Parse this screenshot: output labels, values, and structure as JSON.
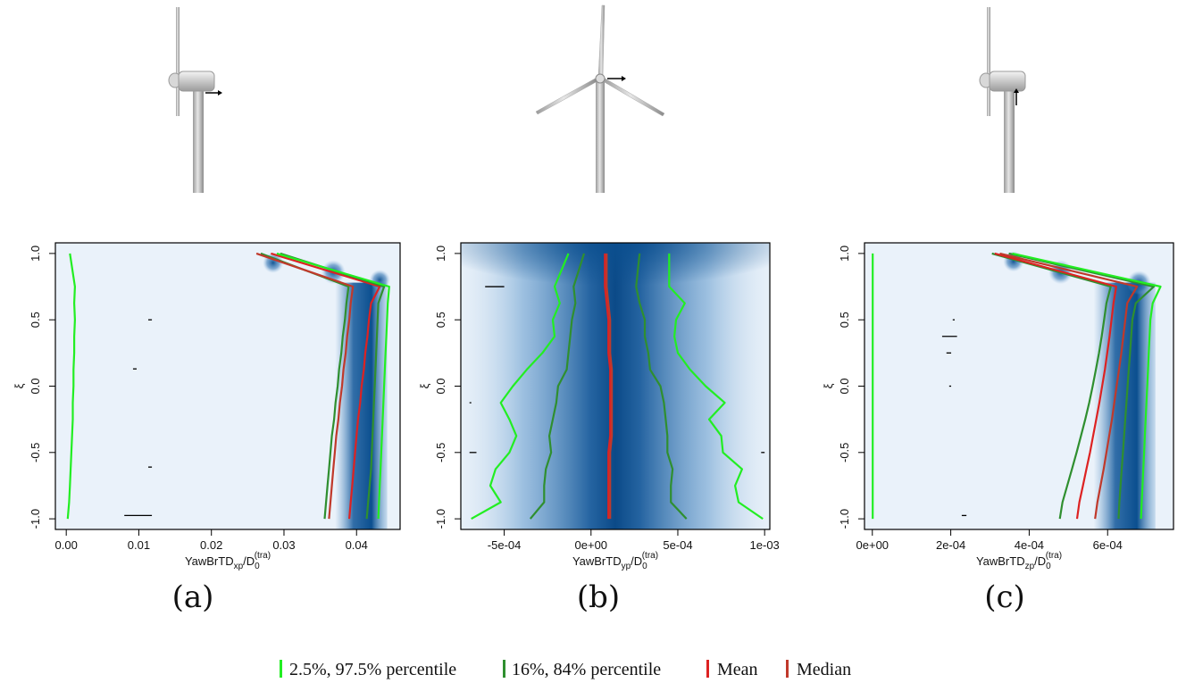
{
  "colors": {
    "p2_5_97_5": "#22ee22",
    "p16_84": "#2f8f2f",
    "mean": "#dd2222",
    "median": "#c0392b",
    "density_low": "#eaf2fa",
    "density_high": "#0b4f8f"
  },
  "icons": [
    "turbine-side-view-x-icon",
    "turbine-front-view-y-icon",
    "turbine-side-view-z-icon"
  ],
  "legend": {
    "items": [
      {
        "label": "2.5%, 97.5% percentile",
        "color_key": "p2_5_97_5"
      },
      {
        "label": "16%, 84% percentile",
        "color_key": "p16_84"
      },
      {
        "label": "Mean",
        "color_key": "mean"
      },
      {
        "label": "Median",
        "color_key": "median"
      }
    ]
  },
  "chart_data": [
    {
      "type": "line",
      "panel_label": "(a)",
      "ylabel": "ξ",
      "xlabel_main": "YawBrTD",
      "xlabel_sub": "xp",
      "xlabel_denominator": "/D",
      "xlabel_den_sub": "0",
      "xlabel_den_sup": "(tra)",
      "xlim": [
        -0.0015,
        0.046
      ],
      "ylim": [
        -1.08,
        1.08
      ],
      "xticks": [
        0,
        0.01,
        0.02,
        0.03,
        0.04
      ],
      "xtick_labels": [
        "0.00",
        "0.01",
        "0.02",
        "0.03",
        "0.04"
      ],
      "yticks": [
        -1,
        -0.5,
        0,
        0.5,
        1
      ],
      "ytick_labels": [
        "-1.0",
        "-0.5",
        "0.0",
        "0.5",
        "1.0"
      ],
      "y": [
        -1.0,
        -0.875,
        -0.75,
        -0.625,
        -0.5,
        -0.375,
        -0.25,
        -0.125,
        0.0,
        0.125,
        0.25,
        0.375,
        0.5,
        0.625,
        0.75,
        1.0
      ],
      "series": [
        {
          "role": "p2_5",
          "values": [
            0.0002,
            0.0004,
            0.0005,
            0.0006,
            0.0007,
            0.0008,
            0.0009,
            0.0009,
            0.001,
            0.001,
            0.0011,
            0.0011,
            0.0012,
            0.0011,
            0.0012,
            0.0005
          ]
        },
        {
          "role": "p16",
          "values": [
            0.0356,
            0.0358,
            0.036,
            0.0362,
            0.0364,
            0.0366,
            0.0369,
            0.0371,
            0.0374,
            0.0376,
            0.0379,
            0.0381,
            0.0384,
            0.0386,
            0.0389,
            0.0268
          ]
        },
        {
          "role": "median",
          "values": [
            0.0362,
            0.0364,
            0.0366,
            0.0368,
            0.037,
            0.0372,
            0.0375,
            0.0377,
            0.038,
            0.0382,
            0.0385,
            0.0387,
            0.039,
            0.0392,
            0.0395,
            0.0262
          ]
        },
        {
          "role": "mean",
          "values": [
            0.039,
            0.0392,
            0.0394,
            0.0396,
            0.0398,
            0.04,
            0.0402,
            0.0405,
            0.0407,
            0.041,
            0.0412,
            0.0415,
            0.0417,
            0.042,
            0.0432,
            0.0282
          ]
        },
        {
          "role": "p84",
          "values": [
            0.0414,
            0.0416,
            0.0418,
            0.042,
            0.0421,
            0.0422,
            0.0423,
            0.0424,
            0.0425,
            0.0426,
            0.0427,
            0.0428,
            0.0429,
            0.043,
            0.0438,
            0.0295
          ]
        },
        {
          "role": "p97_5",
          "values": [
            0.043,
            0.0431,
            0.0432,
            0.0433,
            0.0434,
            0.0435,
            0.0436,
            0.0437,
            0.0438,
            0.0439,
            0.044,
            0.0441,
            0.0442,
            0.0443,
            0.0445,
            0.029
          ]
        }
      ],
      "outliers": [
        {
          "x0": 0.008,
          "x1": 0.0118,
          "y": -0.975
        },
        {
          "x0": 0.0113,
          "x1": 0.0118,
          "y": -0.61
        },
        {
          "x0": 0.0092,
          "x1": 0.0097,
          "y": 0.13
        },
        {
          "x0": 0.0113,
          "x1": 0.0118,
          "y": 0.5
        }
      ],
      "density_core": [
        0.0395,
        0.0425
      ],
      "density_blobs": [
        {
          "x": 0.0285,
          "y": 0.93,
          "r": 0.06
        },
        {
          "x": 0.0368,
          "y": 0.86,
          "r": 0.07
        },
        {
          "x": 0.0432,
          "y": 0.8,
          "r": 0.06
        }
      ]
    },
    {
      "type": "line",
      "panel_label": "(b)",
      "ylabel": "ξ",
      "xlabel_main": "YawBrTD",
      "xlabel_sub": "yp",
      "xlabel_denominator": "/D",
      "xlabel_den_sub": "0",
      "xlabel_den_sup": "(tra)",
      "xlim": [
        -0.00075,
        0.00103
      ],
      "ylim": [
        -1.08,
        1.08
      ],
      "xticks": [
        -0.0005,
        0,
        0.0005,
        0.001
      ],
      "xtick_labels": [
        "-5e-04",
        "0e+00",
        "5e-04",
        "1e-03"
      ],
      "yticks": [
        -1,
        -0.5,
        0,
        0.5,
        1
      ],
      "ytick_labels": [
        "-1.0",
        "-0.5",
        "0.0",
        "0.5",
        "1.0"
      ],
      "y": [
        -1.0,
        -0.875,
        -0.75,
        -0.625,
        -0.5,
        -0.375,
        -0.25,
        -0.125,
        0.0,
        0.125,
        0.25,
        0.375,
        0.5,
        0.625,
        0.75,
        1.0
      ],
      "series": [
        {
          "role": "p2_5",
          "values": [
            -0.00069,
            -0.00052,
            -0.00058,
            -0.00055,
            -0.00047,
            -0.00043,
            -0.00047,
            -0.00052,
            -0.00045,
            -0.00037,
            -0.00028,
            -0.00021,
            -0.00022,
            -0.00018,
            -0.00021,
            -0.00013
          ]
        },
        {
          "role": "p16",
          "values": [
            -0.00035,
            -0.00027,
            -0.00027,
            -0.00026,
            -0.00023,
            -0.00024,
            -0.00022,
            -0.0002,
            -0.00019,
            -0.00014,
            -0.00013,
            -0.00012,
            -0.00011,
            -9e-05,
            -0.0001,
            -4e-05
          ]
        },
        {
          "role": "mean",
          "values": [
            0.0001,
            0.0001,
            0.0001,
            0.0001,
            0.0001,
            0.00011,
            0.00011,
            0.00011,
            0.00011,
            0.00011,
            0.0001,
            0.0001,
            0.0001,
            9e-05,
            8e-05,
            8e-05
          ]
        },
        {
          "role": "median",
          "values": [
            0.00011,
            0.00011,
            0.00011,
            0.00011,
            0.00011,
            0.00012,
            0.00012,
            0.00012,
            0.00012,
            0.00012,
            0.00011,
            0.00011,
            0.00011,
            0.0001,
            9e-05,
            9e-05
          ]
        },
        {
          "role": "p84",
          "values": [
            0.00055,
            0.00046,
            0.00046,
            0.00047,
            0.00044,
            0.00044,
            0.00043,
            0.00042,
            0.0004,
            0.00034,
            0.00033,
            0.00031,
            0.00031,
            0.00028,
            0.00026,
            0.00028
          ]
        },
        {
          "role": "p97_5",
          "values": [
            0.00099,
            0.00085,
            0.00083,
            0.00087,
            0.00076,
            0.00075,
            0.00068,
            0.00077,
            0.00066,
            0.00057,
            0.0005,
            0.00048,
            0.00049,
            0.00054,
            0.00045,
            0.00045
          ]
        }
      ],
      "outliers": [
        {
          "x0": -0.0007,
          "x1": -0.00066,
          "y": -0.5
        },
        {
          "x0": -0.0007,
          "x1": -0.00069,
          "y": -0.125
        },
        {
          "x0": 0.00098,
          "x1": 0.001,
          "y": -0.5
        },
        {
          "x0": -0.00061,
          "x1": -0.0005,
          "y": 0.75
        }
      ]
    },
    {
      "type": "line",
      "panel_label": "(c)",
      "ylabel": "ξ",
      "xlabel_main": "YawBrTD",
      "xlabel_sub": "zp",
      "xlabel_denominator": "/D",
      "xlabel_den_sub": "0",
      "xlabel_den_sup": "(tra)",
      "xlim": [
        -2e-05,
        0.000768
      ],
      "ylim": [
        -1.08,
        1.08
      ],
      "xticks": [
        0,
        0.0002,
        0.0004,
        0.0006
      ],
      "xtick_labels": [
        "0e+00",
        "2e-04",
        "4e-04",
        "6e-04"
      ],
      "yticks": [
        -1,
        -0.5,
        0,
        0.5,
        1
      ],
      "ytick_labels": [
        "-1.0",
        "-0.5",
        "0.0",
        "0.5",
        "1.0"
      ],
      "y": [
        -1.0,
        -0.875,
        -0.75,
        -0.625,
        -0.5,
        -0.375,
        -0.25,
        -0.125,
        0.0,
        0.125,
        0.25,
        0.375,
        0.5,
        0.625,
        0.75,
        1.0
      ],
      "series": [
        {
          "role": "p2_5",
          "values": [
            1e-06,
            1e-06,
            1e-06,
            1e-06,
            1e-06,
            1e-06,
            1e-06,
            1e-06,
            1e-06,
            1e-06,
            1e-06,
            1e-06,
            1e-06,
            1e-06,
            1e-06,
            1e-06
          ]
        },
        {
          "role": "p16",
          "values": [
            0.000478,
            0.000485,
            0.000497,
            0.000509,
            0.000521,
            0.000532,
            0.000543,
            0.000553,
            0.000562,
            0.00057,
            0.000578,
            0.000585,
            0.000591,
            0.000597,
            0.000608,
            0.000305
          ]
        },
        {
          "role": "mean",
          "values": [
            0.000522,
            0.000528,
            0.000537,
            0.000546,
            0.000555,
            0.000563,
            0.000571,
            0.000579,
            0.000586,
            0.000593,
            0.000599,
            0.000605,
            0.00061,
            0.000615,
            0.000622,
            0.000312
          ]
        },
        {
          "role": "median",
          "values": [
            0.000568,
            0.000574,
            0.000582,
            0.00059,
            0.000597,
            0.000604,
            0.000611,
            0.000617,
            0.000623,
            0.000629,
            0.000635,
            0.00064,
            0.000645,
            0.00065,
            0.000675,
            0.000325
          ]
        },
        {
          "role": "p84",
          "values": [
            0.000628,
            0.00063,
            0.000633,
            0.000636,
            0.000639,
            0.000642,
            0.000645,
            0.000648,
            0.000651,
            0.000654,
            0.000657,
            0.00066,
            0.000663,
            0.000672,
            0.000718,
            0.000348
          ]
        },
        {
          "role": "p97_5",
          "values": [
            0.000685,
            0.000687,
            0.000689,
            0.000691,
            0.000693,
            0.000695,
            0.000697,
            0.000699,
            0.000701,
            0.000703,
            0.000705,
            0.000707,
            0.000709,
            0.000715,
            0.000735,
            0.000357
          ]
        }
      ],
      "outliers": [
        {
          "x0": 0.000228,
          "x1": 0.00024,
          "y": -0.975
        },
        {
          "x0": 0.000196,
          "x1": 0.000201,
          "y": 0.0
        },
        {
          "x0": 0.000189,
          "x1": 0.000201,
          "y": 0.25
        },
        {
          "x0": 0.000178,
          "x1": 0.000216,
          "y": 0.375
        },
        {
          "x0": 0.000205,
          "x1": 0.00021,
          "y": 0.5
        }
      ],
      "density_core": [
        0.00061,
        0.00069
      ],
      "density_blobs": [
        {
          "x": 0.00036,
          "y": 0.94,
          "r": 0.06
        },
        {
          "x": 0.00048,
          "y": 0.86,
          "r": 0.07
        },
        {
          "x": 0.00068,
          "y": 0.78,
          "r": 0.07
        }
      ]
    }
  ]
}
